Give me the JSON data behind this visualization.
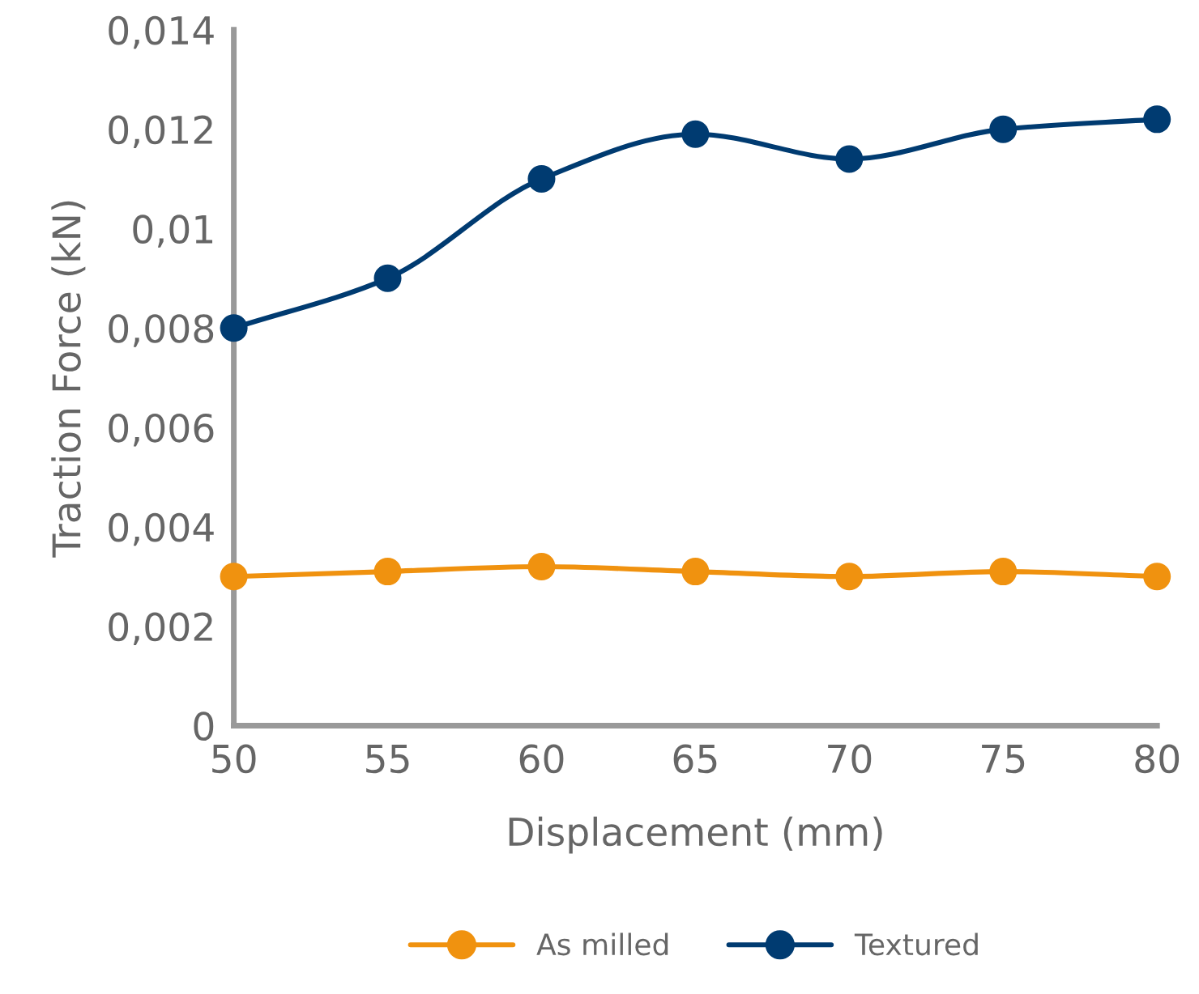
{
  "chart_data": {
    "type": "line",
    "xlabel": "Displacement (mm)",
    "ylabel": "Traction Force (kN)",
    "x": [
      50,
      55,
      60,
      65,
      70,
      75,
      80
    ],
    "series": [
      {
        "name": "As milled",
        "color": "#f0920f",
        "values": [
          0.003,
          0.0031,
          0.0032,
          0.0031,
          0.003,
          0.0031,
          0.003
        ]
      },
      {
        "name": "Textured",
        "color": "#003b71",
        "values": [
          0.008,
          0.009,
          0.011,
          0.0119,
          0.0114,
          0.012,
          0.0122
        ]
      }
    ],
    "xlim": [
      50,
      80
    ],
    "xticks": [
      50,
      55,
      60,
      65,
      70,
      75,
      80
    ],
    "ylim": [
      0,
      0.014
    ],
    "yticks": [
      0,
      {
        "value": 0.002,
        "label": "0,002"
      },
      {
        "value": 0.004,
        "label": "0,004"
      },
      {
        "value": 0.006,
        "label": "0,006"
      },
      {
        "value": 0.008,
        "label": "0,008"
      },
      {
        "value": 0.01,
        "label": "0,01"
      },
      {
        "value": 0.012,
        "label": "0,012"
      },
      {
        "value": 0.014,
        "label": "0,014"
      }
    ],
    "grid": false,
    "legend": "bottom",
    "marker": "circle",
    "line_style": "solid"
  }
}
